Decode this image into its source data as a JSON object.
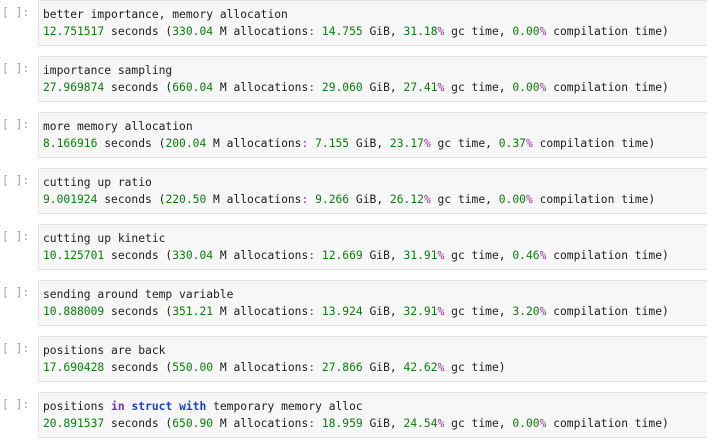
{
  "prompt_label": "[ ]:",
  "cells": [
    {
      "title": "better importance, memory allocation",
      "seconds": "12.751517",
      "allocs": "330.04",
      "mem": "14.755",
      "gc": "31.18",
      "compile": "0.00",
      "has_compile": true
    },
    {
      "title": "importance sampling",
      "seconds": "27.969874",
      "allocs": "660.04",
      "mem": "29.060",
      "gc": "27.41",
      "compile": "0.00",
      "has_compile": true
    },
    {
      "title": "more memory allocation",
      "seconds": "8.166916",
      "allocs": "200.04",
      "mem": "7.155",
      "gc": "23.17",
      "compile": "0.37",
      "has_compile": true
    },
    {
      "title": "cutting up ratio",
      "seconds": "9.001924",
      "allocs": "220.50",
      "mem": "9.266",
      "gc": "26.12",
      "compile": "0.00",
      "has_compile": true
    },
    {
      "title": "cutting up kinetic",
      "seconds": "10.125701",
      "allocs": "330.04",
      "mem": "12.669",
      "gc": "31.91",
      "compile": "0.46",
      "has_compile": true
    },
    {
      "title": "sending around temp variable",
      "seconds": "10.888009",
      "allocs": "351.21",
      "mem": "13.924",
      "gc": "32.91",
      "compile": "3.20",
      "has_compile": true
    },
    {
      "title": "positions are back",
      "seconds": "17.690428",
      "allocs": "550.00",
      "mem": "27.866",
      "gc": "42.62",
      "compile": "",
      "has_compile": false
    },
    {
      "title_parts": [
        "positions ",
        "in",
        " ",
        "struct",
        " ",
        "with",
        " temporary memory alloc"
      ],
      "seconds": "20.891537",
      "allocs": "650.90",
      "mem": "18.959",
      "gc": "24.54",
      "compile": "0.00",
      "has_compile": true
    }
  ],
  "colors": {
    "number": "#088008",
    "keyword_in": "#7a2fb8",
    "keyword_struct": "#1a3fd6",
    "percent": "#a02fa0",
    "prompt": "#a0a0a0",
    "cell_bg": "#f7f7f7"
  },
  "text": {
    "seconds_word": " seconds (",
    "alloc_unit": " M allocations",
    "mem_unit": " GiB, ",
    "gc_word": " gc time, ",
    "compile_word": " compilation time)",
    "gc_close": " gc time)"
  }
}
